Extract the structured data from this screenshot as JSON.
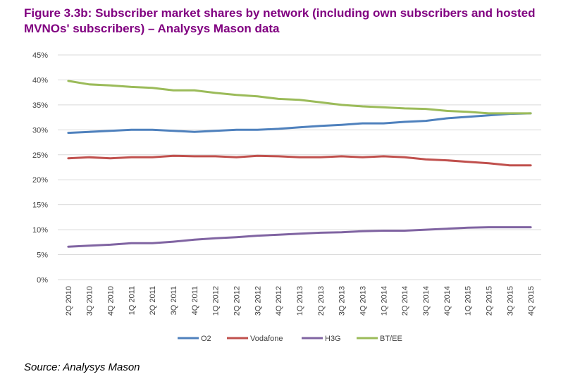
{
  "title": "Figure 3.3b: Subscriber market shares by network (including own subscribers and hosted MVNOs' subscribers) – Analysys Mason data",
  "source": "Source: Analysys Mason",
  "colors": {
    "title": "#800080",
    "O2": "#4f81bd",
    "Vodafone": "#c0504d",
    "H3G": "#8064a2",
    "BT/EE": "#9bbb59",
    "grid": "#d9d9d9"
  },
  "chart_data": {
    "type": "line",
    "title": "Figure 3.3b: Subscriber market shares by network (including own subscribers and hosted MVNOs' subscribers) – Analysys Mason data",
    "xlabel": "",
    "ylabel": "",
    "ylim": [
      0,
      45
    ],
    "yticks": [
      "0%",
      "5%",
      "10%",
      "15%",
      "20%",
      "25%",
      "30%",
      "35%",
      "40%",
      "45%"
    ],
    "grid": true,
    "legend_position": "bottom",
    "categories": [
      "2Q 2010",
      "3Q 2010",
      "4Q 2010",
      "1Q 2011",
      "2Q 2011",
      "3Q 2011",
      "4Q 2011",
      "1Q 2012",
      "2Q 2012",
      "3Q 2012",
      "4Q 2012",
      "1Q 2013",
      "2Q 2013",
      "3Q 2013",
      "4Q 2013",
      "1Q 2014",
      "2Q 2014",
      "3Q 2014",
      "4Q 2014",
      "1Q 2015",
      "2Q 2015",
      "3Q 2015",
      "4Q 2015"
    ],
    "series": [
      {
        "name": "O2",
        "color": "#4f81bd",
        "values": [
          29.4,
          29.6,
          29.8,
          30.0,
          30.0,
          29.8,
          29.6,
          29.8,
          30.0,
          30.0,
          30.2,
          30.5,
          30.8,
          31.0,
          31.3,
          31.3,
          31.6,
          31.8,
          32.3,
          32.6,
          32.9,
          33.2,
          33.3
        ]
      },
      {
        "name": "Vodafone",
        "color": "#c0504d",
        "values": [
          24.3,
          24.5,
          24.3,
          24.5,
          24.5,
          24.8,
          24.7,
          24.7,
          24.5,
          24.8,
          24.7,
          24.5,
          24.5,
          24.7,
          24.5,
          24.7,
          24.5,
          24.1,
          23.9,
          23.6,
          23.3,
          22.9,
          22.9
        ]
      },
      {
        "name": "H3G",
        "color": "#8064a2",
        "values": [
          6.6,
          6.8,
          7.0,
          7.3,
          7.3,
          7.6,
          8.0,
          8.3,
          8.5,
          8.8,
          9.0,
          9.2,
          9.4,
          9.5,
          9.7,
          9.8,
          9.8,
          10.0,
          10.2,
          10.4,
          10.5,
          10.5,
          10.5
        ]
      },
      {
        "name": "BT/EE",
        "color": "#9bbb59",
        "values": [
          39.8,
          39.1,
          38.9,
          38.6,
          38.4,
          37.9,
          37.9,
          37.4,
          37.0,
          36.7,
          36.2,
          36.0,
          35.5,
          35.0,
          34.7,
          34.5,
          34.3,
          34.2,
          33.8,
          33.6,
          33.3,
          33.3,
          33.3
        ]
      }
    ]
  }
}
